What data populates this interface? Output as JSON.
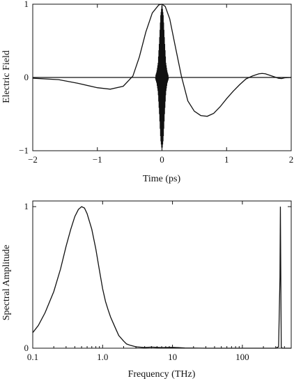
{
  "chart_data": [
    {
      "type": "line",
      "title": "",
      "xlabel": "Time (ps)",
      "ylabel": "Electric Field",
      "xlim": [
        -2,
        2
      ],
      "ylim": [
        -1,
        1
      ],
      "x_ticks": [
        -2,
        -1,
        0,
        1,
        2
      ],
      "x_tick_labels": [
        "−2",
        "−1",
        "0",
        "1",
        "2"
      ],
      "y_ticks": [
        -1,
        0,
        1
      ],
      "y_tick_labels": [
        "−1",
        "0",
        "1"
      ],
      "grid": false,
      "series": [
        {
          "x": [
            -2.0,
            -1.6,
            -1.3,
            -1.0,
            -0.8,
            -0.6,
            -0.45,
            -0.35,
            -0.25,
            -0.15,
            -0.05,
            0.0,
            0.05,
            0.12,
            0.2,
            0.3,
            0.4,
            0.5,
            0.6,
            0.7,
            0.8,
            0.9,
            1.0,
            1.1,
            1.2,
            1.3,
            1.4,
            1.5,
            1.55,
            1.6,
            1.7,
            1.8,
            1.85,
            1.9,
            2.0
          ],
          "values": [
            -0.01,
            -0.03,
            -0.08,
            -0.14,
            -0.16,
            -0.12,
            0.02,
            0.28,
            0.62,
            0.88,
            0.99,
            1.0,
            0.97,
            0.8,
            0.45,
            0.02,
            -0.32,
            -0.46,
            -0.52,
            -0.53,
            -0.49,
            -0.4,
            -0.29,
            -0.19,
            -0.1,
            -0.02,
            0.02,
            0.05,
            0.055,
            0.05,
            0.02,
            -0.01,
            -0.015,
            -0.005,
            0.0
          ]
        },
        {
          "x": [
            -2.0,
            2.0
          ],
          "values": [
            0.0,
            0.0
          ]
        },
        {
          "x": [
            -0.1,
            -0.08,
            -0.06,
            -0.04,
            -0.02,
            0.0,
            0.02,
            0.04,
            0.06,
            0.08,
            0.1
          ],
          "values": [
            0.02,
            0.08,
            0.2,
            0.5,
            0.85,
            1.0,
            0.85,
            0.5,
            0.2,
            0.08,
            0.02
          ],
          "envelope": true
        }
      ]
    },
    {
      "type": "line",
      "title": "",
      "xlabel": "Frequency (THz)",
      "ylabel": "Spectral Amplitude",
      "xscale": "log",
      "xlim": [
        0.1,
        500
      ],
      "ylim": [
        0,
        1.04
      ],
      "x_ticks": [
        0.1,
        1.0,
        10,
        100
      ],
      "x_tick_labels": [
        "0.1",
        "1.0",
        "10",
        "100"
      ],
      "y_ticks": [
        0,
        1
      ],
      "y_tick_labels": [
        "0",
        "1"
      ],
      "grid": false,
      "series": [
        {
          "x": [
            0.1,
            0.12,
            0.15,
            0.2,
            0.25,
            0.3,
            0.35,
            0.4,
            0.45,
            0.5,
            0.55,
            0.6,
            0.7,
            0.8,
            0.9,
            1.0,
            1.1,
            1.2,
            1.3,
            1.5,
            1.7,
            2.0,
            2.2,
            2.5,
            3.0,
            4.0,
            5.0,
            7.0,
            10.0,
            15.0,
            30.0,
            100.0,
            300.0,
            330.0,
            345.0,
            350.0,
            355.0,
            360.0,
            370.0,
            400.0,
            500.0
          ],
          "values": [
            0.11,
            0.16,
            0.25,
            0.4,
            0.56,
            0.72,
            0.84,
            0.93,
            0.98,
            1.0,
            0.99,
            0.95,
            0.84,
            0.7,
            0.55,
            0.42,
            0.33,
            0.27,
            0.22,
            0.15,
            0.09,
            0.05,
            0.03,
            0.02,
            0.01,
            0.005,
            0.008,
            0.004,
            0.006,
            0.002,
            0.0,
            0.0,
            0.0,
            0.01,
            0.5,
            1.0,
            0.5,
            0.01,
            0.0,
            0.0,
            0.0
          ]
        }
      ]
    }
  ]
}
